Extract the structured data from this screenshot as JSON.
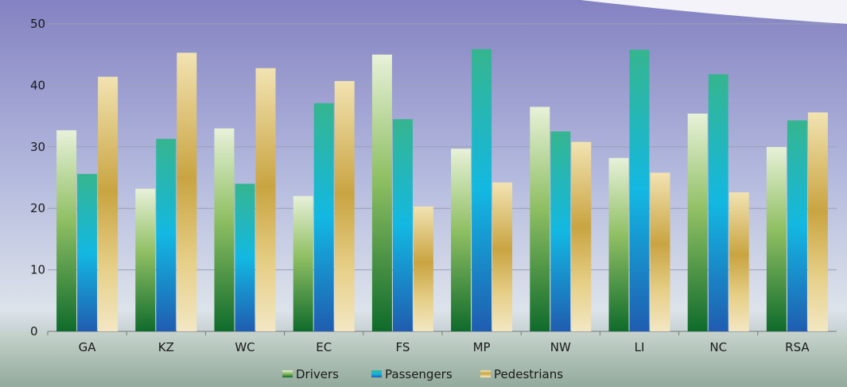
{
  "chart_data": {
    "type": "bar",
    "title": "",
    "xlabel": "",
    "ylabel": "",
    "ylim": [
      0,
      50
    ],
    "yticks": [
      0,
      10,
      20,
      30,
      40,
      50
    ],
    "grid": true,
    "legend_position": "bottom",
    "categories": [
      "GA",
      "KZ",
      "WC",
      "EC",
      "FS",
      "MP",
      "NW",
      "LI",
      "NC",
      "RSA"
    ],
    "series": [
      {
        "name": "Drivers",
        "color": "#3f8f3a",
        "values": [
          32.7,
          23.2,
          33.0,
          22.0,
          45.0,
          29.7,
          36.5,
          28.2,
          35.4,
          30.0
        ]
      },
      {
        "name": "Passengers",
        "color": "#1aa6d8",
        "values": [
          25.6,
          31.3,
          24.0,
          37.1,
          34.5,
          45.9,
          32.5,
          45.8,
          41.8,
          34.3
        ]
      },
      {
        "name": "Pedestrians",
        "color": "#d9b44a",
        "values": [
          41.4,
          45.3,
          42.8,
          40.7,
          20.3,
          24.2,
          30.8,
          25.8,
          22.6,
          35.6
        ]
      }
    ]
  }
}
